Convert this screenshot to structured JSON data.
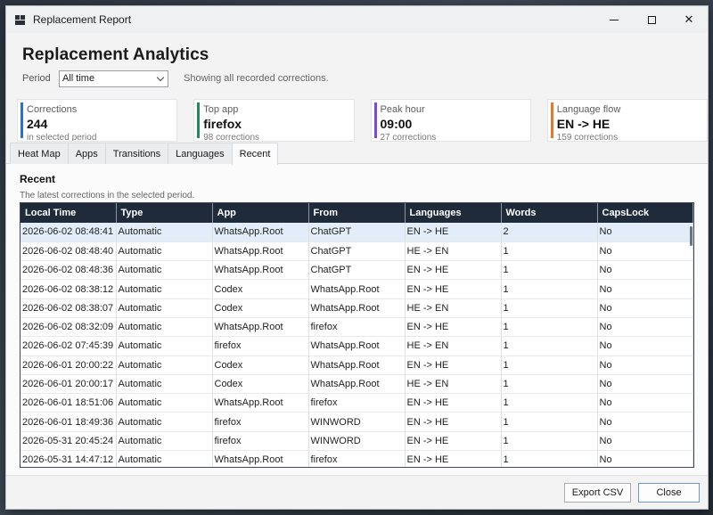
{
  "window": {
    "title": "Replacement Report"
  },
  "header": {
    "title": "Replacement Analytics",
    "period_label": "Period",
    "period_value": "All time",
    "period_hint": "Showing all recorded corrections."
  },
  "cards": [
    {
      "label": "Corrections",
      "value": "244",
      "sub": "in selected period",
      "color": "#2b6fd6"
    },
    {
      "label": "Top app",
      "value": "firefox",
      "sub": "98 corrections",
      "color": "#1f8a5a"
    },
    {
      "label": "Peak hour",
      "value": "09:00",
      "sub": "27 corrections",
      "color": "#7c4ad6"
    },
    {
      "label": "Language flow",
      "value": "EN -> HE",
      "sub": "159 corrections",
      "color": "#e07b29"
    }
  ],
  "tabs": [
    "Heat Map",
    "Apps",
    "Transitions",
    "Languages",
    "Recent"
  ],
  "panel": {
    "title": "Recent",
    "subtitle": "The latest corrections in the selected period."
  },
  "table": {
    "columns": [
      "Local Time",
      "Type",
      "App",
      "From",
      "Languages",
      "Words",
      "CapsLock"
    ],
    "rows": [
      [
        "2026-06-02 08:48:41",
        "Automatic",
        "WhatsApp.Root",
        "ChatGPT",
        "EN -> HE",
        "2",
        "No"
      ],
      [
        "2026-06-02 08:48:40",
        "Automatic",
        "WhatsApp.Root",
        "ChatGPT",
        "HE -> EN",
        "1",
        "No"
      ],
      [
        "2026-06-02 08:48:36",
        "Automatic",
        "WhatsApp.Root",
        "ChatGPT",
        "EN -> HE",
        "1",
        "No"
      ],
      [
        "2026-06-02 08:38:12",
        "Automatic",
        "Codex",
        "WhatsApp.Root",
        "EN -> HE",
        "1",
        "No"
      ],
      [
        "2026-06-02 08:38:07",
        "Automatic",
        "Codex",
        "WhatsApp.Root",
        "HE -> EN",
        "1",
        "No"
      ],
      [
        "2026-06-02 08:32:09",
        "Automatic",
        "WhatsApp.Root",
        "firefox",
        "EN -> HE",
        "1",
        "No"
      ],
      [
        "2026-06-02 07:45:39",
        "Automatic",
        "firefox",
        "WhatsApp.Root",
        "HE -> EN",
        "1",
        "No"
      ],
      [
        "2026-06-01 20:00:22",
        "Automatic",
        "Codex",
        "WhatsApp.Root",
        "EN -> HE",
        "1",
        "No"
      ],
      [
        "2026-06-01 20:00:17",
        "Automatic",
        "Codex",
        "WhatsApp.Root",
        "HE -> EN",
        "1",
        "No"
      ],
      [
        "2026-06-01 18:51:06",
        "Automatic",
        "WhatsApp.Root",
        "firefox",
        "EN -> HE",
        "1",
        "No"
      ],
      [
        "2026-06-01 18:49:36",
        "Automatic",
        "firefox",
        "WINWORD",
        "EN -> HE",
        "1",
        "No"
      ],
      [
        "2026-05-31 20:45:24",
        "Automatic",
        "firefox",
        "WINWORD",
        "EN -> HE",
        "1",
        "No"
      ],
      [
        "2026-05-31 14:47:12",
        "Automatic",
        "WhatsApp.Root",
        "firefox",
        "EN -> HE",
        "1",
        "No"
      ]
    ]
  },
  "footer": {
    "export_label": "Export CSV",
    "close_label": "Close"
  }
}
